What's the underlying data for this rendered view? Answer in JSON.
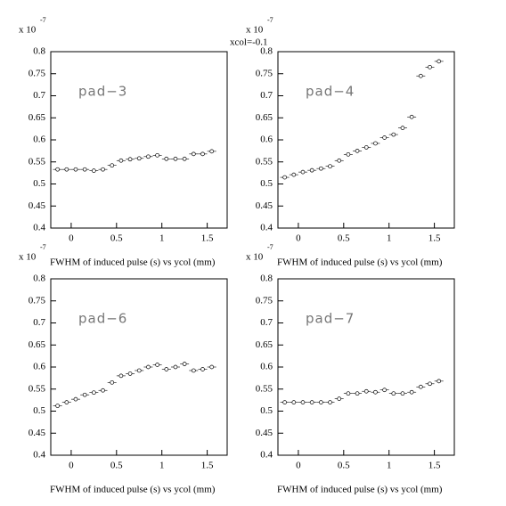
{
  "chart_data": [
    {
      "type": "scatter",
      "pad_label": "pad−3",
      "multiplier": "x 10",
      "exponent": "-7",
      "x_label": "FWHM of induced pulse (s) vs ycol (mm)",
      "x": [
        -0.15,
        -0.05,
        0.05,
        0.15,
        0.25,
        0.35,
        0.45,
        0.55,
        0.65,
        0.75,
        0.85,
        0.95,
        1.05,
        1.15,
        1.25,
        1.35,
        1.45,
        1.55
      ],
      "values": [
        0.533,
        0.533,
        0.533,
        0.533,
        0.53,
        0.533,
        0.542,
        0.553,
        0.556,
        0.558,
        0.562,
        0.565,
        0.557,
        0.557,
        0.557,
        0.568,
        0.568,
        0.574
      ],
      "xlim": [
        -0.225,
        1.72
      ],
      "xticks": [
        0,
        0.5,
        1,
        1.5
      ],
      "ylim": [
        0.4,
        0.8
      ],
      "yticks": [
        0.4,
        0.45,
        0.5,
        0.55,
        0.6,
        0.65,
        0.7,
        0.75,
        0.8
      ],
      "color": "#000000"
    },
    {
      "type": "scatter",
      "pad_label": "pad−4",
      "multiplier": "x 10",
      "exponent": "-7",
      "annotation": "xcol=-0.1",
      "x_label": "FWHM of induced pulse (s) vs ycol (mm)",
      "x": [
        -0.15,
        -0.05,
        0.05,
        0.15,
        0.25,
        0.35,
        0.45,
        0.55,
        0.65,
        0.75,
        0.85,
        0.95,
        1.05,
        1.15,
        1.25,
        1.35,
        1.45,
        1.55
      ],
      "values": [
        0.515,
        0.521,
        0.527,
        0.531,
        0.535,
        0.54,
        0.553,
        0.567,
        0.575,
        0.583,
        0.592,
        0.605,
        0.612,
        0.627,
        0.652,
        0.745,
        0.765,
        0.778
      ],
      "xlim": [
        -0.225,
        1.72
      ],
      "xticks": [
        0,
        0.5,
        1,
        1.5
      ],
      "ylim": [
        0.4,
        0.8
      ],
      "yticks": [
        0.4,
        0.45,
        0.5,
        0.55,
        0.6,
        0.65,
        0.7,
        0.75,
        0.8
      ],
      "color": "#000000"
    },
    {
      "type": "scatter",
      "pad_label": "pad−6",
      "multiplier": "x 10",
      "exponent": "-7",
      "x_label": "FWHM of induced pulse (s) vs ycol (mm)",
      "x": [
        -0.15,
        -0.05,
        0.05,
        0.15,
        0.25,
        0.35,
        0.45,
        0.55,
        0.65,
        0.75,
        0.85,
        0.95,
        1.05,
        1.15,
        1.25,
        1.35,
        1.45,
        1.55
      ],
      "values": [
        0.512,
        0.52,
        0.527,
        0.537,
        0.542,
        0.547,
        0.565,
        0.58,
        0.585,
        0.592,
        0.6,
        0.605,
        0.595,
        0.6,
        0.607,
        0.592,
        0.595,
        0.6
      ],
      "xlim": [
        -0.225,
        1.72
      ],
      "xticks": [
        0,
        0.5,
        1,
        1.5
      ],
      "ylim": [
        0.4,
        0.8
      ],
      "yticks": [
        0.4,
        0.45,
        0.5,
        0.55,
        0.6,
        0.65,
        0.7,
        0.75,
        0.8
      ],
      "color": "#000000"
    },
    {
      "type": "scatter",
      "pad_label": "pad−7",
      "multiplier": "x 10",
      "exponent": "-7",
      "x_label": "FWHM of induced pulse (s) vs ycol (mm)",
      "x": [
        -0.15,
        -0.05,
        0.05,
        0.15,
        0.25,
        0.35,
        0.45,
        0.55,
        0.65,
        0.75,
        0.85,
        0.95,
        1.05,
        1.15,
        1.25,
        1.35,
        1.45,
        1.55
      ],
      "values": [
        0.52,
        0.52,
        0.52,
        0.52,
        0.52,
        0.52,
        0.528,
        0.54,
        0.54,
        0.545,
        0.543,
        0.548,
        0.54,
        0.54,
        0.543,
        0.555,
        0.562,
        0.568
      ],
      "xlim": [
        -0.225,
        1.72
      ],
      "xticks": [
        0,
        0.5,
        1,
        1.5
      ],
      "ylim": [
        0.4,
        0.8
      ],
      "yticks": [
        0.4,
        0.45,
        0.5,
        0.55,
        0.6,
        0.65,
        0.7,
        0.75,
        0.8
      ],
      "color": "#000000"
    }
  ]
}
